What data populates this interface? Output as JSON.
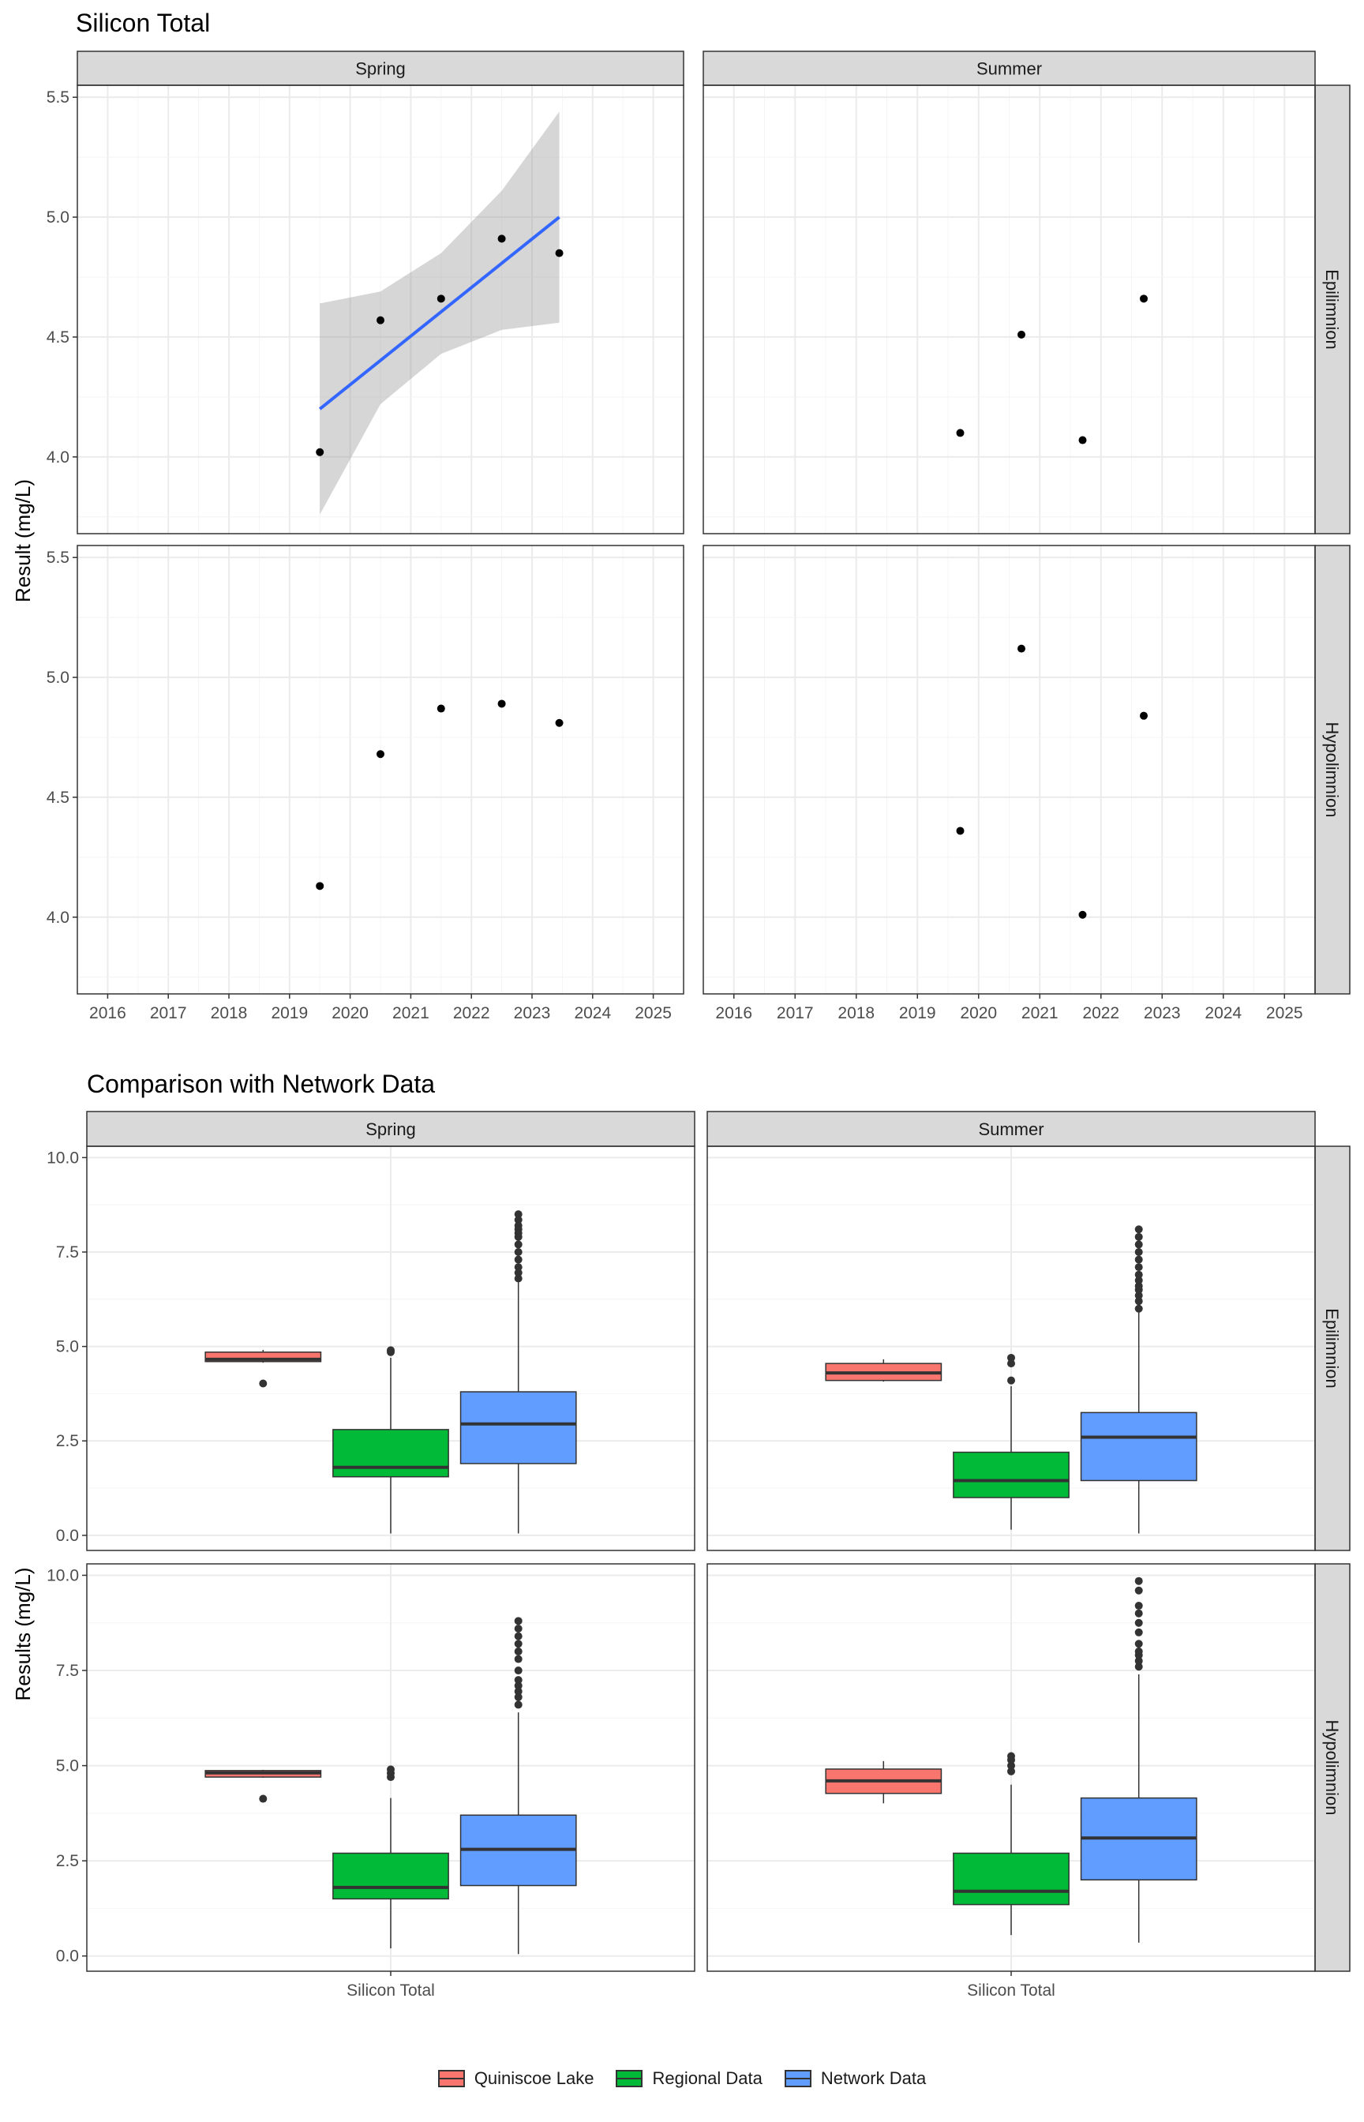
{
  "chart_data": [
    {
      "type": "scatter",
      "title": "Silicon Total",
      "ylabel": "Result (mg/L)",
      "xlabel": "",
      "columns": [
        "Spring",
        "Summer"
      ],
      "rows": [
        "Epilimnion",
        "Hypolimnion"
      ],
      "xlim": [
        2015.5,
        2025.5
      ],
      "ylim": [
        3.68,
        5.55
      ],
      "xticks": [
        "2016",
        "2017",
        "2018",
        "2019",
        "2020",
        "2021",
        "2022",
        "2023",
        "2024",
        "2025"
      ],
      "yticks": [
        "4.0",
        "4.5",
        "5.0",
        "5.5"
      ],
      "grid": true,
      "panels": [
        {
          "column": "Spring",
          "row": "Epilimnion",
          "points": [
            [
              2019.5,
              4.02
            ],
            [
              2020.5,
              4.57
            ],
            [
              2021.5,
              4.66
            ],
            [
              2022.5,
              4.91
            ],
            [
              2023.45,
              4.85
            ]
          ],
          "trend": {
            "x": [
              2019.5,
              2023.45
            ],
            "y": [
              4.2,
              5.0
            ],
            "ci": {
              "x": [
                2019.5,
                2020.5,
                2021.5,
                2022.5,
                2023.45
              ],
              "lower": [
                3.76,
                4.22,
                4.43,
                4.53,
                4.56
              ],
              "upper": [
                4.64,
                4.69,
                4.85,
                5.11,
                5.44
              ]
            }
          }
        },
        {
          "column": "Summer",
          "row": "Epilimnion",
          "points": [
            [
              2019.7,
              4.1
            ],
            [
              2020.7,
              4.51
            ],
            [
              2021.7,
              4.07
            ],
            [
              2022.7,
              4.66
            ]
          ]
        },
        {
          "column": "Spring",
          "row": "Hypolimnion",
          "points": [
            [
              2019.5,
              4.13
            ],
            [
              2020.5,
              4.68
            ],
            [
              2021.5,
              4.87
            ],
            [
              2022.5,
              4.89
            ],
            [
              2023.45,
              4.81
            ]
          ]
        },
        {
          "column": "Summer",
          "row": "Hypolimnion",
          "points": [
            [
              2019.7,
              4.36
            ],
            [
              2020.7,
              5.12
            ],
            [
              2021.7,
              4.01
            ],
            [
              2022.7,
              4.84
            ]
          ]
        }
      ]
    },
    {
      "type": "box",
      "title": "Comparison with Network Data",
      "ylabel": "Results (mg/L)",
      "xlabel": "",
      "columns": [
        "Spring",
        "Summer"
      ],
      "rows": [
        "Epilimnion",
        "Hypolimnion"
      ],
      "category": "Silicon Total",
      "ylim": [
        -0.4,
        10.3
      ],
      "yticks": [
        "0.0",
        "2.5",
        "5.0",
        "7.5",
        "10.0"
      ],
      "grid": true,
      "legend_position": "bottom",
      "series": [
        {
          "name": "Quiniscoe Lake",
          "color": "#F8766D"
        },
        {
          "name": "Regional Data",
          "color": "#00BA38"
        },
        {
          "name": "Network Data",
          "color": "#619CFF"
        }
      ],
      "panels": [
        {
          "column": "Spring",
          "row": "Epilimnion",
          "boxes": [
            {
              "series": "Quiniscoe Lake",
              "min": 4.57,
              "q1": 4.6,
              "median": 4.66,
              "q3": 4.85,
              "max": 4.91,
              "outliers": [
                4.02
              ]
            },
            {
              "series": "Regional Data",
              "min": 0.05,
              "q1": 1.55,
              "median": 1.8,
              "q3": 2.8,
              "max": 4.7,
              "outliers": [
                4.85,
                4.9
              ]
            },
            {
              "series": "Network Data",
              "min": 0.05,
              "q1": 1.9,
              "median": 2.95,
              "q3": 3.8,
              "max": 6.7,
              "outliers": [
                6.8,
                6.95,
                7.1,
                7.3,
                7.5,
                7.7,
                7.9,
                8.0,
                8.1,
                8.2,
                8.35,
                8.5
              ]
            }
          ]
        },
        {
          "column": "Summer",
          "row": "Epilimnion",
          "boxes": [
            {
              "series": "Quiniscoe Lake",
              "min": 4.07,
              "q1": 4.1,
              "median": 4.3,
              "q3": 4.55,
              "max": 4.66,
              "outliers": []
            },
            {
              "series": "Regional Data",
              "min": 0.15,
              "q1": 1.0,
              "median": 1.45,
              "q3": 2.2,
              "max": 3.95,
              "outliers": [
                4.1,
                4.55,
                4.7
              ]
            },
            {
              "series": "Network Data",
              "min": 0.05,
              "q1": 1.45,
              "median": 2.6,
              "q3": 3.25,
              "max": 5.9,
              "outliers": [
                6.0,
                6.2,
                6.35,
                6.5,
                6.6,
                6.75,
                6.9,
                7.1,
                7.3,
                7.5,
                7.7,
                7.9,
                8.1
              ]
            }
          ]
        },
        {
          "column": "Spring",
          "row": "Hypolimnion",
          "boxes": [
            {
              "series": "Quiniscoe Lake",
              "min": 4.68,
              "q1": 4.7,
              "median": 4.81,
              "q3": 4.87,
              "max": 4.89,
              "outliers": [
                4.13
              ]
            },
            {
              "series": "Regional Data",
              "min": 0.2,
              "q1": 1.5,
              "median": 1.8,
              "q3": 2.7,
              "max": 4.15,
              "outliers": [
                4.7,
                4.8,
                4.9
              ]
            },
            {
              "series": "Network Data",
              "min": 0.05,
              "q1": 1.85,
              "median": 2.8,
              "q3": 3.7,
              "max": 6.4,
              "outliers": [
                6.6,
                6.8,
                6.95,
                7.1,
                7.25,
                7.5,
                7.8,
                8.0,
                8.2,
                8.4,
                8.6,
                8.8
              ]
            }
          ]
        },
        {
          "column": "Summer",
          "row": "Hypolimnion",
          "boxes": [
            {
              "series": "Quiniscoe Lake",
              "min": 4.01,
              "q1": 4.27,
              "median": 4.6,
              "q3": 4.91,
              "max": 5.12,
              "outliers": []
            },
            {
              "series": "Regional Data",
              "min": 0.55,
              "q1": 1.35,
              "median": 1.7,
              "q3": 2.7,
              "max": 4.5,
              "outliers": [
                4.85,
                5.0,
                5.15,
                5.25
              ]
            },
            {
              "series": "Network Data",
              "min": 0.35,
              "q1": 2.0,
              "median": 3.1,
              "q3": 4.15,
              "max": 7.4,
              "outliers": [
                7.6,
                7.75,
                7.9,
                8.0,
                8.2,
                8.5,
                8.75,
                9.0,
                9.2,
                9.6,
                9.85
              ]
            }
          ]
        }
      ]
    }
  ]
}
